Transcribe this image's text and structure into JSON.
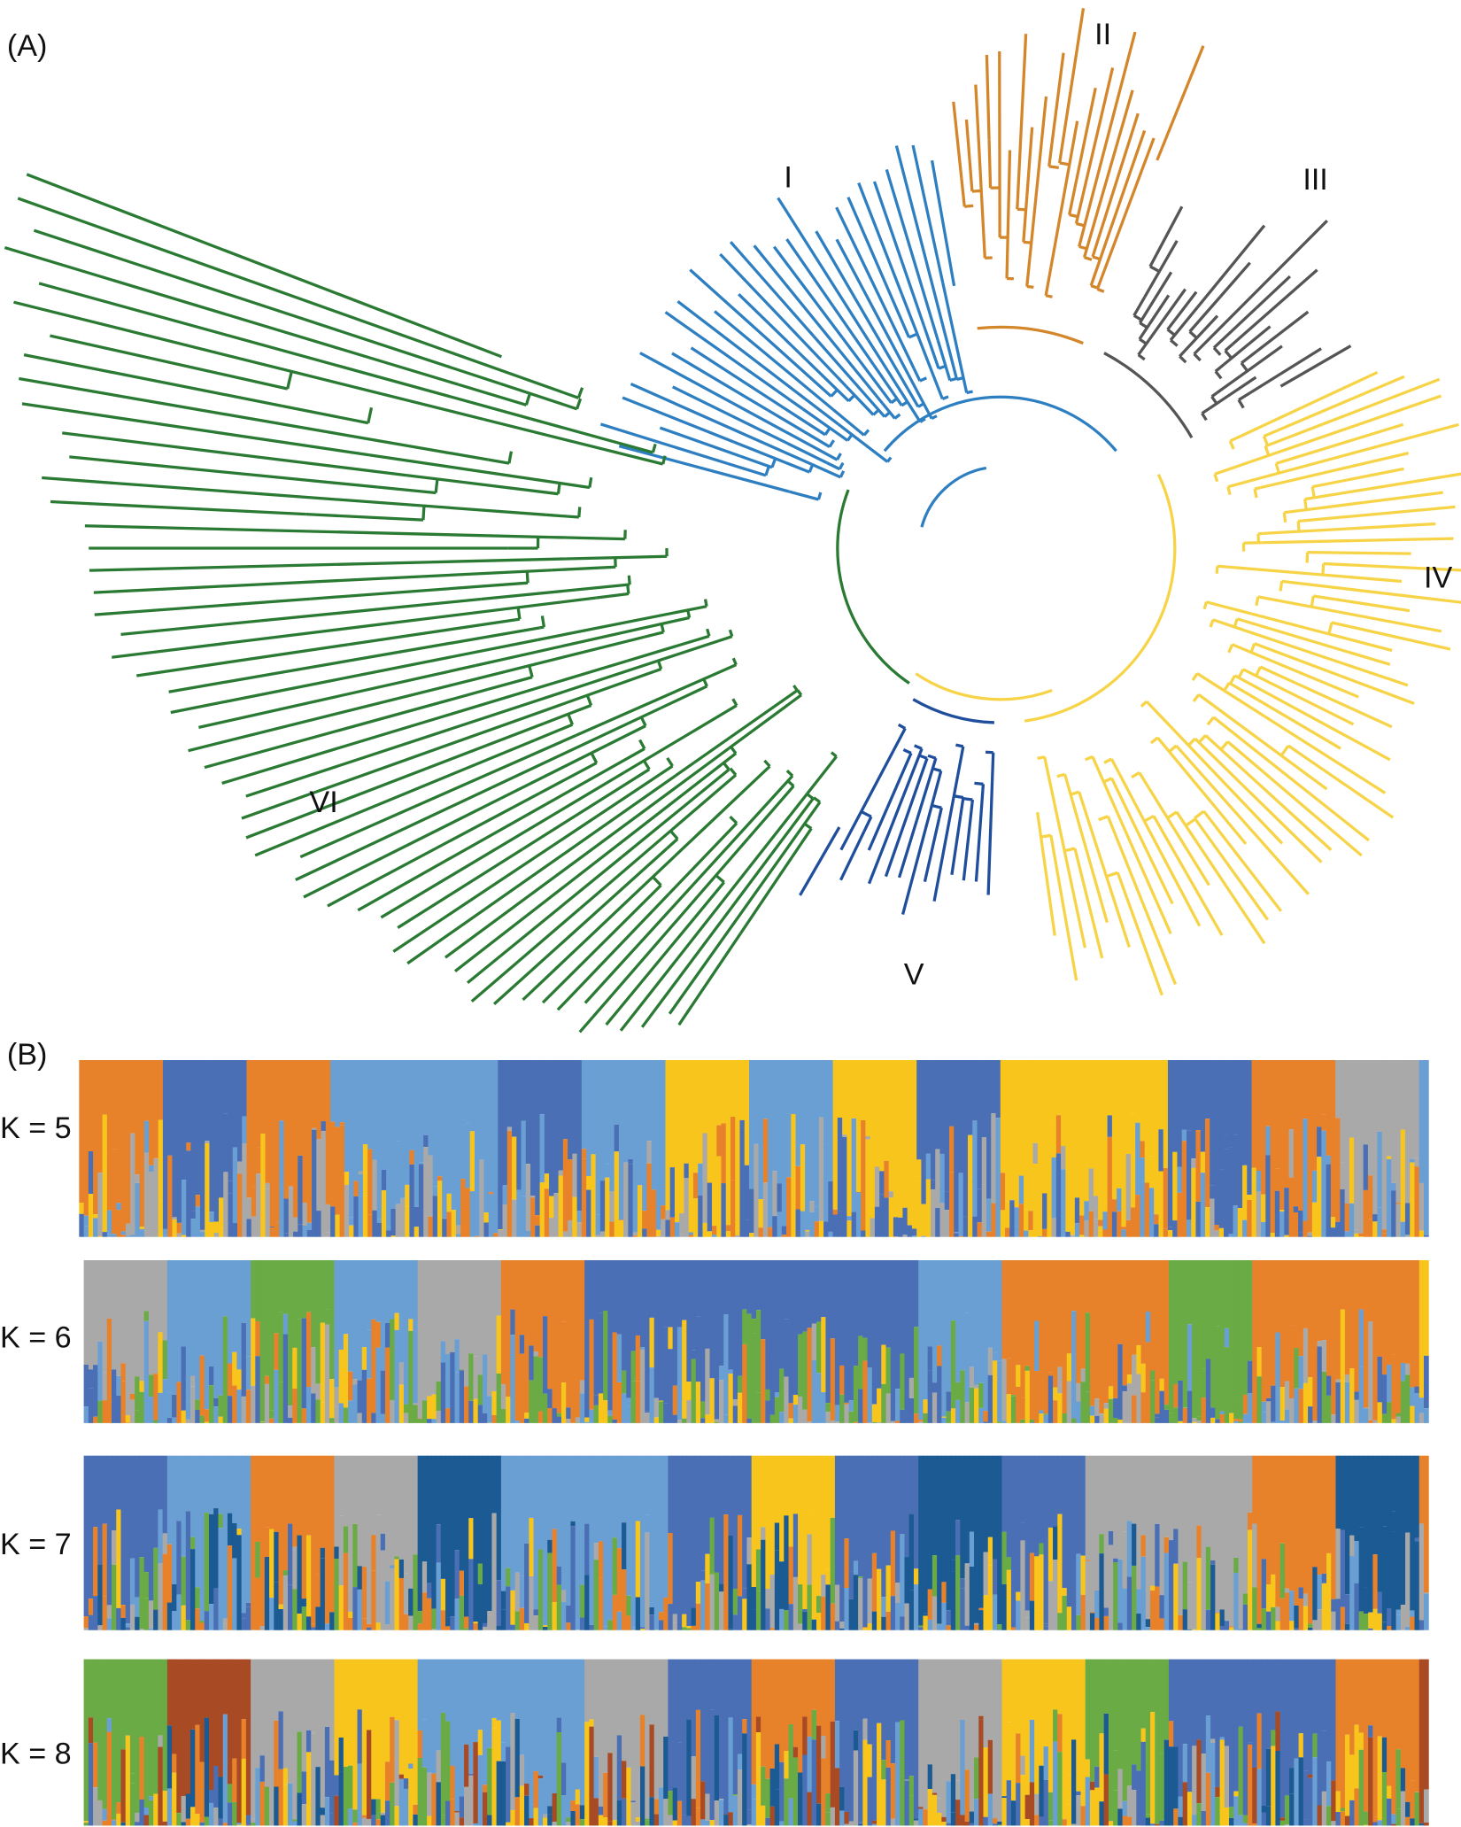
{
  "panel_a": {
    "label": "(A)",
    "clades": [
      "I",
      "II",
      "III",
      "IV",
      "V",
      "VI"
    ]
  },
  "panel_b": {
    "label": "(B)",
    "rows": [
      "K = 5",
      "K = 6",
      "K = 7",
      "K = 8"
    ]
  }
}
